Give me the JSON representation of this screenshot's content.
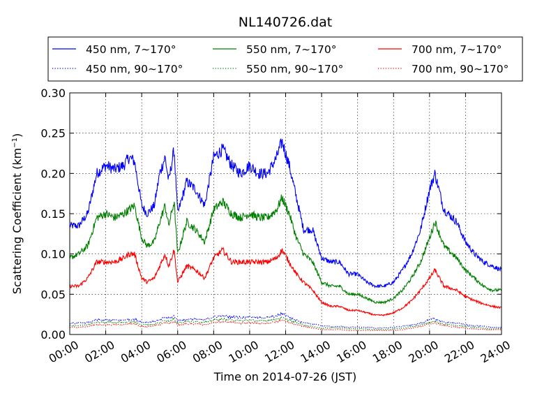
{
  "chart_data": {
    "type": "line",
    "title": "NL140726.dat",
    "xlabel": "Time on 2014-07-26 (JST)",
    "ylabel": "Scattering Coefficient (km",
    "ylabel_sup": "−1",
    "ylabel_end": ")",
    "xlim": [
      0,
      24
    ],
    "ylim": [
      0,
      0.3
    ],
    "x_ticks": [
      0,
      2,
      4,
      6,
      8,
      10,
      12,
      14,
      16,
      18,
      20,
      22,
      24
    ],
    "x_tick_labels": [
      "00:00",
      "02:00",
      "04:00",
      "06:00",
      "08:00",
      "10:00",
      "12:00",
      "14:00",
      "16:00",
      "18:00",
      "20:00",
      "22:00",
      "24:00"
    ],
    "y_ticks": [
      0,
      0.05,
      0.1,
      0.15,
      0.2,
      0.25,
      0.3
    ],
    "y_tick_labels": [
      "0.00",
      "0.05",
      "0.10",
      "0.15",
      "0.20",
      "0.25",
      "0.30"
    ],
    "grid": true,
    "legend_position": "top",
    "x": [
      0,
      0.5,
      1,
      1.5,
      2,
      2.5,
      3,
      3.3,
      3.6,
      4,
      4.3,
      4.7,
      5,
      5.3,
      5.5,
      5.8,
      6,
      6.5,
      7,
      7.5,
      8,
      8.5,
      9,
      9.5,
      10,
      10.5,
      11,
      11.5,
      11.8,
      12.2,
      12.6,
      13,
      13.5,
      14,
      14.5,
      15,
      15.5,
      16,
      16.5,
      17,
      17.5,
      18,
      18.5,
      19,
      19.5,
      20,
      20.3,
      20.8,
      21.5,
      22,
      22.5,
      23,
      23.5,
      24
    ],
    "series": [
      {
        "name": "450 nm, 7∼170°",
        "color": "#0000ff",
        "dash": "solid",
        "values": [
          0.135,
          0.135,
          0.15,
          0.2,
          0.21,
          0.205,
          0.21,
          0.22,
          0.215,
          0.16,
          0.15,
          0.16,
          0.2,
          0.22,
          0.19,
          0.23,
          0.15,
          0.19,
          0.18,
          0.16,
          0.22,
          0.23,
          0.21,
          0.2,
          0.21,
          0.2,
          0.2,
          0.22,
          0.24,
          0.21,
          0.17,
          0.13,
          0.13,
          0.095,
          0.09,
          0.09,
          0.075,
          0.075,
          0.065,
          0.06,
          0.06,
          0.065,
          0.08,
          0.1,
          0.13,
          0.18,
          0.2,
          0.155,
          0.14,
          0.115,
          0.1,
          0.09,
          0.085,
          0.08
        ]
      },
      {
        "name": "550 nm, 7∼170°",
        "color": "#007f00",
        "dash": "solid",
        "values": [
          0.095,
          0.1,
          0.11,
          0.145,
          0.15,
          0.145,
          0.15,
          0.155,
          0.16,
          0.12,
          0.11,
          0.115,
          0.14,
          0.16,
          0.135,
          0.165,
          0.1,
          0.14,
          0.13,
          0.115,
          0.155,
          0.165,
          0.15,
          0.145,
          0.15,
          0.145,
          0.145,
          0.155,
          0.17,
          0.15,
          0.12,
          0.1,
          0.09,
          0.065,
          0.06,
          0.06,
          0.05,
          0.05,
          0.045,
          0.04,
          0.04,
          0.045,
          0.055,
          0.07,
          0.09,
          0.12,
          0.14,
          0.11,
          0.095,
          0.08,
          0.07,
          0.06,
          0.055,
          0.055
        ]
      },
      {
        "name": "700 nm, 7∼170°",
        "color": "#ff0000",
        "dash": "solid",
        "values": [
          0.06,
          0.06,
          0.07,
          0.09,
          0.09,
          0.09,
          0.095,
          0.1,
          0.1,
          0.07,
          0.065,
          0.07,
          0.085,
          0.1,
          0.085,
          0.105,
          0.065,
          0.085,
          0.08,
          0.07,
          0.095,
          0.105,
          0.09,
          0.09,
          0.09,
          0.09,
          0.09,
          0.095,
          0.105,
          0.09,
          0.075,
          0.065,
          0.055,
          0.04,
          0.035,
          0.035,
          0.03,
          0.03,
          0.027,
          0.024,
          0.024,
          0.027,
          0.033,
          0.042,
          0.055,
          0.07,
          0.08,
          0.06,
          0.055,
          0.047,
          0.042,
          0.038,
          0.035,
          0.033
        ]
      },
      {
        "name": "450 nm, 90∼170°",
        "color": "#0000ff",
        "dash": "dotted",
        "values": [
          0.014,
          0.014,
          0.015,
          0.018,
          0.018,
          0.018,
          0.018,
          0.019,
          0.019,
          0.015,
          0.015,
          0.016,
          0.018,
          0.022,
          0.02,
          0.023,
          0.017,
          0.019,
          0.019,
          0.018,
          0.022,
          0.023,
          0.022,
          0.021,
          0.022,
          0.021,
          0.021,
          0.023,
          0.026,
          0.022,
          0.018,
          0.015,
          0.013,
          0.011,
          0.01,
          0.01,
          0.009,
          0.009,
          0.009,
          0.008,
          0.008,
          0.009,
          0.01,
          0.012,
          0.014,
          0.018,
          0.02,
          0.015,
          0.014,
          0.012,
          0.011,
          0.01,
          0.009,
          0.009
        ]
      },
      {
        "name": "550 nm, 90∼170°",
        "color": "#007f00",
        "dash": "dotted",
        "values": [
          0.011,
          0.011,
          0.012,
          0.015,
          0.015,
          0.015,
          0.015,
          0.016,
          0.016,
          0.012,
          0.012,
          0.013,
          0.015,
          0.018,
          0.016,
          0.019,
          0.014,
          0.016,
          0.016,
          0.015,
          0.018,
          0.019,
          0.018,
          0.017,
          0.018,
          0.017,
          0.017,
          0.019,
          0.021,
          0.018,
          0.015,
          0.012,
          0.01,
          0.008,
          0.008,
          0.008,
          0.007,
          0.007,
          0.007,
          0.006,
          0.006,
          0.007,
          0.008,
          0.01,
          0.012,
          0.015,
          0.016,
          0.013,
          0.011,
          0.01,
          0.009,
          0.008,
          0.007,
          0.007
        ]
      },
      {
        "name": "700 nm, 90∼170°",
        "color": "#ff0000",
        "dash": "dotted",
        "values": [
          0.009,
          0.009,
          0.01,
          0.012,
          0.012,
          0.012,
          0.012,
          0.013,
          0.013,
          0.01,
          0.01,
          0.011,
          0.012,
          0.015,
          0.013,
          0.016,
          0.012,
          0.013,
          0.013,
          0.012,
          0.015,
          0.016,
          0.015,
          0.014,
          0.015,
          0.014,
          0.014,
          0.016,
          0.018,
          0.015,
          0.012,
          0.01,
          0.008,
          0.006,
          0.006,
          0.006,
          0.005,
          0.005,
          0.005,
          0.005,
          0.005,
          0.005,
          0.006,
          0.008,
          0.01,
          0.013,
          0.014,
          0.011,
          0.009,
          0.008,
          0.007,
          0.006,
          0.006,
          0.006
        ]
      }
    ]
  }
}
